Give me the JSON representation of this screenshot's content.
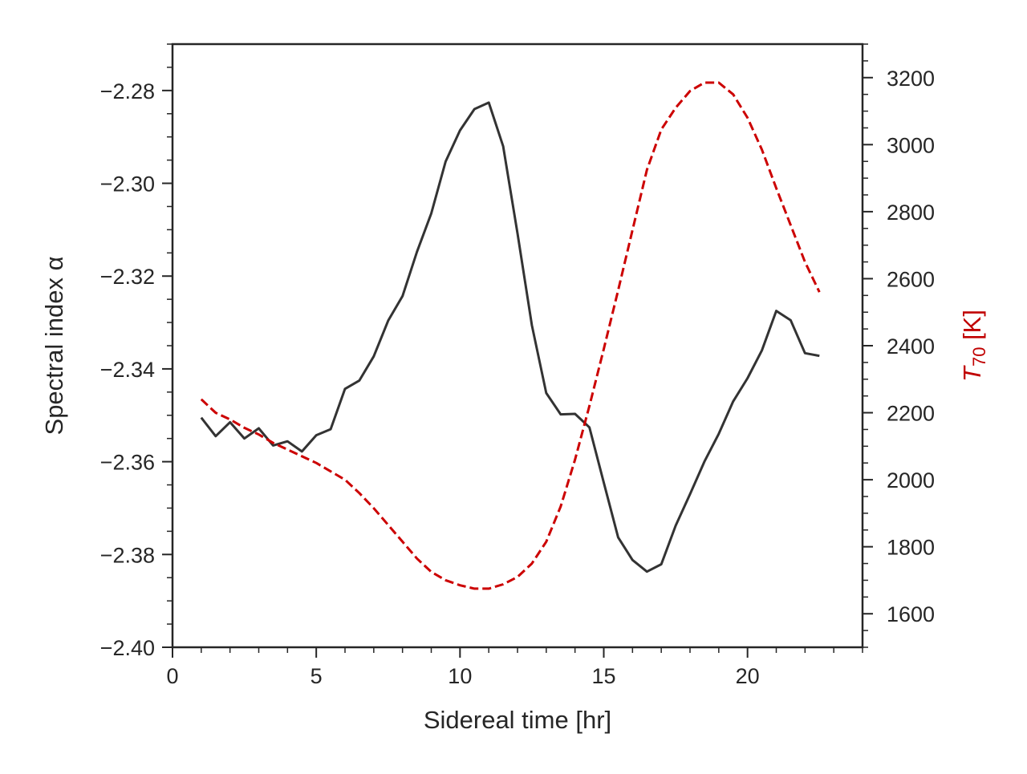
{
  "chart_data": {
    "type": "line",
    "xlabel": "Sidereal time [hr]",
    "ylabel_left": "Spectral index α",
    "ylabel_right": {
      "symbol": "T",
      "subscript": "70",
      "unit": " [K]"
    },
    "xlim": [
      0,
      24
    ],
    "ylim_left": [
      -2.4,
      -2.27
    ],
    "ylim_right": [
      1500,
      3300
    ],
    "x_ticks": [
      0,
      5,
      10,
      15,
      20
    ],
    "x_tick_labels": [
      "0",
      "5",
      "10",
      "15",
      "20"
    ],
    "y_left_ticks": [
      -2.4,
      -2.38,
      -2.36,
      -2.34,
      -2.32,
      -2.3,
      -2.28
    ],
    "y_left_tick_labels": [
      "−2.40",
      "−2.38",
      "−2.36",
      "−2.34",
      "−2.32",
      "−2.30",
      "−2.28"
    ],
    "y_right_ticks": [
      1600,
      1800,
      2000,
      2200,
      2400,
      2600,
      2800,
      3000,
      3200
    ],
    "y_right_tick_labels": [
      "1600",
      "1800",
      "2000",
      "2200",
      "2400",
      "2600",
      "2800",
      "3000",
      "3200"
    ],
    "grid": false,
    "legend": "none",
    "colors": {
      "alpha": "#333333",
      "t70": "#cc0000",
      "axes": "#262626"
    },
    "series": [
      {
        "axis": "left",
        "style": "solid",
        "x": [
          1,
          1.5,
          2,
          2.5,
          3,
          3.5,
          4,
          4.5,
          5,
          5.5,
          6,
          6.5,
          7,
          7.5,
          8,
          8.5,
          9,
          9.5,
          10,
          10.5,
          11,
          11.5,
          12,
          12.5,
          13,
          13.5,
          14,
          14.5,
          15,
          15.5,
          16,
          16.5,
          17,
          17.5,
          18,
          18.5,
          19,
          19.5,
          20,
          20.5,
          21,
          21.5,
          22,
          22.5
        ],
        "values": [
          -2.3505,
          -2.3545,
          -2.3515,
          -2.355,
          -2.3528,
          -2.3565,
          -2.3556,
          -2.3578,
          -2.3543,
          -2.353,
          -2.3443,
          -2.3425,
          -2.3373,
          -2.3296,
          -2.3243,
          -2.3148,
          -2.3065,
          -2.2953,
          -2.2886,
          -2.284,
          -2.2826,
          -2.292,
          -2.3108,
          -2.3306,
          -2.3452,
          -2.3498,
          -2.3497,
          -2.3526,
          -2.3645,
          -2.3763,
          -2.3812,
          -2.3837,
          -2.3821,
          -2.3738,
          -2.367,
          -2.36,
          -2.354,
          -2.347,
          -2.342,
          -2.336,
          -2.3275,
          -2.3295,
          -2.3366,
          -2.3372
        ]
      },
      {
        "axis": "right",
        "style": "dashed",
        "x": [
          1,
          1.5,
          2,
          2.5,
          3,
          3.5,
          4,
          4.5,
          5,
          5.5,
          6,
          6.5,
          7,
          7.5,
          8,
          8.5,
          9,
          9.5,
          10,
          10.5,
          11,
          11.5,
          12,
          12.5,
          13,
          13.5,
          14,
          14.5,
          15,
          15.5,
          16,
          16.5,
          17,
          17.5,
          18,
          18.5,
          19,
          19.5,
          20,
          20.5,
          21,
          21.5,
          22,
          22.5
        ],
        "values": [
          2240,
          2200,
          2180,
          2155,
          2135,
          2110,
          2090,
          2070,
          2050,
          2025,
          2000,
          1960,
          1915,
          1865,
          1815,
          1765,
          1725,
          1700,
          1685,
          1675,
          1675,
          1688,
          1710,
          1750,
          1815,
          1920,
          2060,
          2220,
          2390,
          2565,
          2745,
          2925,
          3045,
          3110,
          3160,
          3185,
          3185,
          3150,
          3080,
          2985,
          2870,
          2760,
          2650,
          2560
        ]
      }
    ]
  }
}
